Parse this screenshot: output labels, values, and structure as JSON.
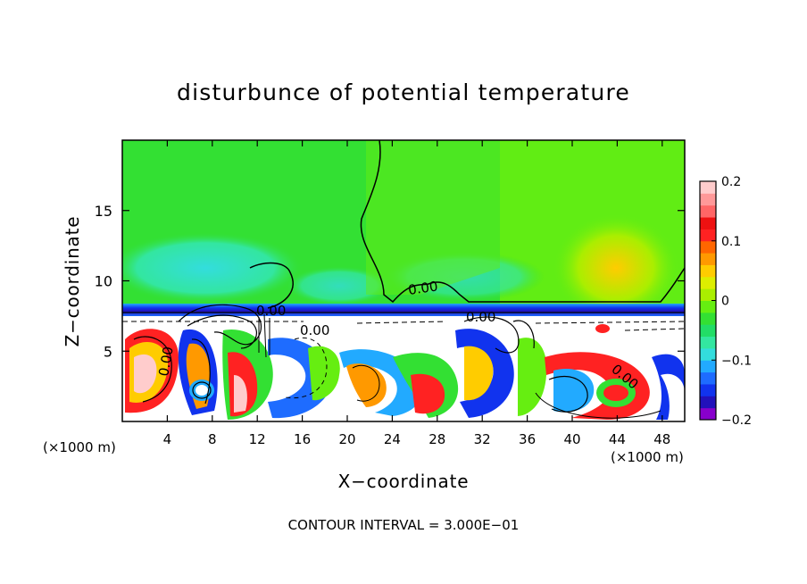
{
  "chart_data": {
    "type": "heatmap",
    "title": "disturbunce of potential temperature",
    "xlabel": "X−coordinate",
    "ylabel": "Z−coordinate",
    "x_unit": "(×1000 m)",
    "x_unit_right": "(×1000 m)",
    "xlim": [
      0,
      50
    ],
    "ylim": [
      0,
      20
    ],
    "x_ticks": [
      4,
      8,
      12,
      16,
      20,
      24,
      28,
      32,
      36,
      40,
      44,
      48
    ],
    "y_ticks": [
      5,
      10,
      15
    ],
    "colorbar": {
      "range": [
        -0.2,
        0.2
      ],
      "ticks": [
        {
          "value": 0.2,
          "label": "0.2"
        },
        {
          "value": 0.1,
          "label": "0.1"
        },
        {
          "value": 0,
          "label": "0"
        },
        {
          "value": -0.1,
          "label": "−0.1"
        },
        {
          "value": -0.2,
          "label": "−0.2"
        }
      ],
      "colors": [
        "#8800cc",
        "#2211bb",
        "#1133ee",
        "#1e6cff",
        "#22aaff",
        "#33dddd",
        "#33e6a0",
        "#22dd66",
        "#33e033",
        "#66ee11",
        "#aaee00",
        "#ddee00",
        "#ffcc00",
        "#ff9900",
        "#ff6600",
        "#ff2222",
        "#ee1111",
        "#ff6666",
        "#ff9999",
        "#ffcccc"
      ]
    },
    "contour_labels": [
      "0.00",
      "0.00",
      "0.00",
      "0.00",
      "0.00",
      "0.00"
    ],
    "note": "CONTOUR INTERVAL = 3.000E−01",
    "grid": false,
    "legend": "colorbar-right"
  }
}
